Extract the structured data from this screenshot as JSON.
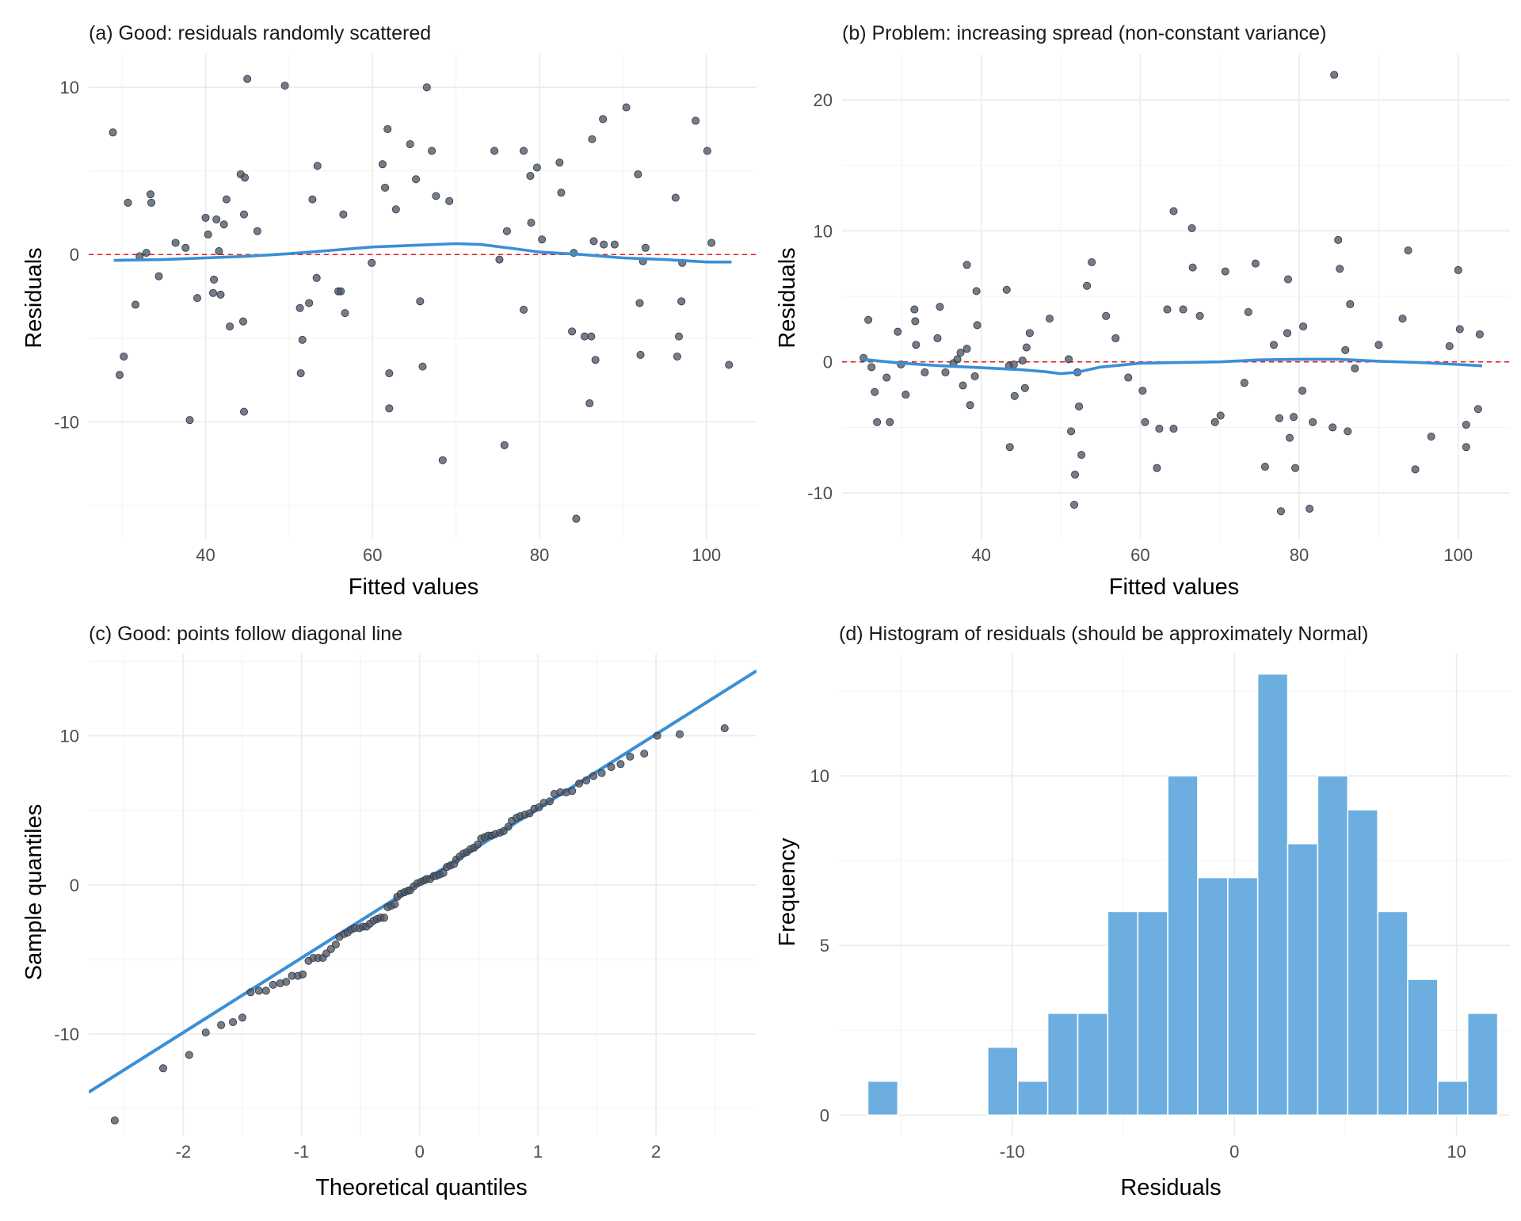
{
  "chart_data": [
    {
      "id": "a",
      "type": "scatter",
      "title": "(a) Good: residuals randomly scattered",
      "xlabel": "Fitted values",
      "ylabel": "Residuals",
      "xlim": [
        26,
        106
      ],
      "ylim": [
        -17,
        12
      ],
      "xticks": [
        40,
        60,
        80,
        100
      ],
      "yticks": [
        -10,
        0,
        10
      ],
      "reference_line_y": 0,
      "reference_color": "#e41a1c",
      "smooth_color": "#3a8fd6",
      "point_color": "#4d5766",
      "points": [
        [
          28.9,
          7.3
        ],
        [
          29.7,
          -7.2
        ],
        [
          30.2,
          -6.1
        ],
        [
          30.7,
          3.1
        ],
        [
          31.6,
          -3
        ],
        [
          32.1,
          -0.1
        ],
        [
          32.9,
          0.1
        ],
        [
          33.4,
          3.6
        ],
        [
          33.5,
          3.1
        ],
        [
          34.4,
          -1.3
        ],
        [
          36.4,
          0.7
        ],
        [
          37.6,
          0.4
        ],
        [
          38.1,
          -9.9
        ],
        [
          39,
          -2.6
        ],
        [
          40,
          2.2
        ],
        [
          40.3,
          1.2
        ],
        [
          40.9,
          -2.3
        ],
        [
          41,
          -1.5
        ],
        [
          41.3,
          2.1
        ],
        [
          41.6,
          0.2
        ],
        [
          41.8,
          -2.4
        ],
        [
          42.2,
          1.8
        ],
        [
          42.5,
          3.3
        ],
        [
          42.9,
          -4.3
        ],
        [
          44.2,
          4.8
        ],
        [
          44.5,
          -4
        ],
        [
          44.6,
          -9.4
        ],
        [
          44.6,
          2.4
        ],
        [
          44.7,
          4.6
        ],
        [
          45,
          10.5
        ],
        [
          46.2,
          1.4
        ],
        [
          49.5,
          10.1
        ],
        [
          51.3,
          -3.2
        ],
        [
          51.4,
          -7.1
        ],
        [
          51.6,
          -5.1
        ],
        [
          52.4,
          -2.9
        ],
        [
          52.8,
          3.3
        ],
        [
          53.3,
          -1.4
        ],
        [
          53.4,
          5.3
        ],
        [
          55.9,
          -2.2
        ],
        [
          56.2,
          -2.2
        ],
        [
          56.5,
          2.4
        ],
        [
          56.7,
          -3.5
        ],
        [
          59.9,
          -0.5
        ],
        [
          61.2,
          5.4
        ],
        [
          61.5,
          4.0
        ],
        [
          61.8,
          7.5
        ],
        [
          62,
          -9.2
        ],
        [
          62,
          -7.1
        ],
        [
          62.8,
          2.7
        ],
        [
          64.5,
          6.6
        ],
        [
          65.2,
          4.5
        ],
        [
          65.7,
          -2.8
        ],
        [
          66,
          -6.7
        ],
        [
          66.5,
          10.0
        ],
        [
          67.1,
          6.2
        ],
        [
          67.6,
          3.5
        ],
        [
          68.4,
          -12.3
        ],
        [
          69.2,
          3.2
        ],
        [
          74.6,
          6.2
        ],
        [
          75.2,
          -0.3
        ],
        [
          75.8,
          -11.4
        ],
        [
          76.1,
          1.4
        ],
        [
          78.1,
          -3.3
        ],
        [
          78.1,
          6.2
        ],
        [
          78.9,
          4.7
        ],
        [
          79,
          1.9
        ],
        [
          79.7,
          5.2
        ],
        [
          80.3,
          0.9
        ],
        [
          82.4,
          5.5
        ],
        [
          82.6,
          3.7
        ],
        [
          83.9,
          -4.6
        ],
        [
          84.1,
          0.1
        ],
        [
          84.4,
          -15.8
        ],
        [
          85.4,
          -4.9
        ],
        [
          86,
          -8.9
        ],
        [
          86.2,
          -4.9
        ],
        [
          86.3,
          6.9
        ],
        [
          86.5,
          0.8
        ],
        [
          86.7,
          -6.3
        ],
        [
          87.6,
          8.1
        ],
        [
          87.7,
          0.6
        ],
        [
          89,
          0.6
        ],
        [
          90.4,
          8.8
        ],
        [
          91.8,
          4.8
        ],
        [
          92,
          -2.9
        ],
        [
          92.1,
          -6.0
        ],
        [
          92.4,
          -0.4
        ],
        [
          92.7,
          0.4
        ],
        [
          96.3,
          3.4
        ],
        [
          96.5,
          -6.1
        ],
        [
          96.7,
          -4.9
        ],
        [
          97,
          -2.8
        ],
        [
          97.1,
          -0.5
        ],
        [
          98.7,
          8.0
        ],
        [
          100.1,
          6.2
        ],
        [
          100.6,
          0.7
        ],
        [
          102.7,
          -6.6
        ]
      ],
      "smooth": [
        [
          29,
          -0.35
        ],
        [
          35,
          -0.3
        ],
        [
          40,
          -0.2
        ],
        [
          45,
          -0.1
        ],
        [
          50,
          0.05
        ],
        [
          55,
          0.25
        ],
        [
          60,
          0.45
        ],
        [
          65,
          0.55
        ],
        [
          70,
          0.65
        ],
        [
          73,
          0.6
        ],
        [
          77,
          0.35
        ],
        [
          80,
          0.15
        ],
        [
          85,
          0
        ],
        [
          90,
          -0.2
        ],
        [
          95,
          -0.3
        ],
        [
          100,
          -0.45
        ],
        [
          103,
          -0.45
        ]
      ]
    },
    {
      "id": "b",
      "type": "scatter",
      "title": "(b) Problem: increasing spread (non-constant variance)",
      "xlabel": "Fitted values",
      "ylabel": "Residuals",
      "xlim": [
        22.5,
        106.5
      ],
      "ylim": [
        -13.5,
        23.5
      ],
      "xticks": [
        40,
        60,
        80,
        100
      ],
      "yticks": [
        -10,
        0,
        10,
        20
      ],
      "reference_line_y": 0,
      "reference_color": "#e41a1c",
      "smooth_color": "#3a8fd6",
      "point_color": "#4d5766",
      "points": [
        [
          25.2,
          0.3
        ],
        [
          25.8,
          3.2
        ],
        [
          26.2,
          -0.4
        ],
        [
          26.6,
          -2.3
        ],
        [
          26.9,
          -4.6
        ],
        [
          28.1,
          -1.2
        ],
        [
          28.5,
          -4.6
        ],
        [
          29.5,
          2.3
        ],
        [
          29.9,
          -0.2
        ],
        [
          30.5,
          -2.5
        ],
        [
          31.6,
          4.0
        ],
        [
          31.7,
          3.1
        ],
        [
          31.8,
          1.3
        ],
        [
          32.9,
          -0.8
        ],
        [
          34.5,
          1.8
        ],
        [
          34.8,
          4.2
        ],
        [
          35.5,
          -0.8
        ],
        [
          36.5,
          -0.1
        ],
        [
          37,
          0.2
        ],
        [
          37.4,
          0.7
        ],
        [
          37.7,
          -1.8
        ],
        [
          38.2,
          1.0
        ],
        [
          38.2,
          7.4
        ],
        [
          38.6,
          -3.3
        ],
        [
          39.2,
          -1.1
        ],
        [
          39.4,
          5.4
        ],
        [
          39.5,
          2.8
        ],
        [
          43.2,
          5.5
        ],
        [
          43.5,
          -0.3
        ],
        [
          43.6,
          -6.5
        ],
        [
          44.1,
          -0.2
        ],
        [
          44.2,
          -2.6
        ],
        [
          45.2,
          0.1
        ],
        [
          45.5,
          -2.0
        ],
        [
          45.7,
          1.1
        ],
        [
          46.1,
          2.2
        ],
        [
          48.6,
          3.3
        ],
        [
          51,
          0.2
        ],
        [
          51.3,
          -5.3
        ],
        [
          51.7,
          -10.9
        ],
        [
          51.8,
          -8.6
        ],
        [
          52.1,
          -0.8
        ],
        [
          52.3,
          -3.4
        ],
        [
          52.6,
          -7.1
        ],
        [
          53.3,
          5.8
        ],
        [
          53.9,
          7.6
        ],
        [
          55.7,
          3.5
        ],
        [
          56.9,
          1.8
        ],
        [
          58.5,
          -1.2
        ],
        [
          60.3,
          -2.2
        ],
        [
          60.6,
          -4.6
        ],
        [
          62.1,
          -8.1
        ],
        [
          62.4,
          -5.1
        ],
        [
          63.4,
          4.0
        ],
        [
          64.2,
          11.5
        ],
        [
          64.2,
          -5.1
        ],
        [
          65.4,
          4.0
        ],
        [
          66.5,
          10.2
        ],
        [
          66.6,
          7.2
        ],
        [
          67.5,
          3.5
        ],
        [
          69.4,
          -4.6
        ],
        [
          70.1,
          -4.1
        ],
        [
          70.7,
          6.9
        ],
        [
          73.1,
          -1.6
        ],
        [
          73.6,
          3.8
        ],
        [
          74.5,
          7.5
        ],
        [
          75.7,
          -8.0
        ],
        [
          76.8,
          1.3
        ],
        [
          77.5,
          -4.3
        ],
        [
          77.7,
          -11.4
        ],
        [
          78.5,
          2.2
        ],
        [
          78.6,
          6.3
        ],
        [
          78.8,
          -5.8
        ],
        [
          79.3,
          -4.2
        ],
        [
          79.5,
          -8.1
        ],
        [
          80.4,
          -2.2
        ],
        [
          80.5,
          2.7
        ],
        [
          81.3,
          -11.2
        ],
        [
          81.7,
          -4.6
        ],
        [
          84.2,
          -5.0
        ],
        [
          84.4,
          21.9
        ],
        [
          84.9,
          9.3
        ],
        [
          85.1,
          7.1
        ],
        [
          85.8,
          0.9
        ],
        [
          86.1,
          -5.3
        ],
        [
          86.4,
          4.4
        ],
        [
          87,
          -0.5
        ],
        [
          90,
          1.3
        ],
        [
          93,
          3.3
        ],
        [
          93.7,
          8.5
        ],
        [
          94.6,
          -8.2
        ],
        [
          96.6,
          -5.7
        ],
        [
          98.9,
          1.2
        ],
        [
          100,
          7.0
        ],
        [
          100.2,
          2.5
        ],
        [
          101,
          -4.8
        ],
        [
          101,
          -6.5
        ],
        [
          102.5,
          -3.6
        ],
        [
          102.7,
          2.1
        ]
      ],
      "smooth": [
        [
          25,
          0.2
        ],
        [
          30,
          -0.1
        ],
        [
          35,
          -0.3
        ],
        [
          40,
          -0.45
        ],
        [
          45,
          -0.6
        ],
        [
          48,
          -0.75
        ],
        [
          50,
          -0.9
        ],
        [
          52,
          -0.8
        ],
        [
          55,
          -0.4
        ],
        [
          60,
          -0.1
        ],
        [
          65,
          -0.05
        ],
        [
          70,
          0
        ],
        [
          75,
          0.15
        ],
        [
          80,
          0.2
        ],
        [
          85,
          0.2
        ],
        [
          90,
          0.05
        ],
        [
          95,
          -0.05
        ],
        [
          100,
          -0.2
        ],
        [
          103,
          -0.3
        ]
      ]
    },
    {
      "id": "c",
      "type": "scatter",
      "title": "(c) Good: points follow diagonal line",
      "xlabel": "Theoretical quantiles",
      "ylabel": "Sample quantiles",
      "xlim": [
        -2.8,
        2.85
      ],
      "ylim": [
        -16.8,
        15.5
      ],
      "xticks": [
        -2,
        -1,
        0,
        1,
        2
      ],
      "yticks": [
        -10,
        0,
        10
      ],
      "reference_line": {
        "intercept": 0.1,
        "slope": 5.0
      },
      "line_color": "#3a8fd6",
      "point_color": "#4d5766",
      "points": [
        [
          -2.58,
          -15.8
        ],
        [
          -2.17,
          -12.3
        ],
        [
          -1.95,
          -11.4
        ],
        [
          -1.81,
          -9.9
        ],
        [
          -1.68,
          -9.4
        ],
        [
          -1.58,
          -9.2
        ],
        [
          -1.5,
          -8.9
        ],
        [
          -1.43,
          -7.2
        ],
        [
          -1.36,
          -7.1
        ],
        [
          -1.3,
          -7.1
        ],
        [
          -1.24,
          -6.7
        ],
        [
          -1.18,
          -6.6
        ],
        [
          -1.13,
          -6.5
        ],
        [
          -1.08,
          -6.1
        ],
        [
          -1.03,
          -6.1
        ],
        [
          -0.99,
          -6.0
        ],
        [
          -0.94,
          -5.1
        ],
        [
          -0.9,
          -4.9
        ],
        [
          -0.86,
          -4.9
        ],
        [
          -0.82,
          -4.9
        ],
        [
          -0.79,
          -4.6
        ],
        [
          -0.75,
          -4.3
        ],
        [
          -0.71,
          -4.0
        ],
        [
          -0.68,
          -3.5
        ],
        [
          -0.64,
          -3.3
        ],
        [
          -0.61,
          -3.2
        ],
        [
          -0.58,
          -3.0
        ],
        [
          -0.55,
          -2.9
        ],
        [
          -0.51,
          -2.9
        ],
        [
          -0.48,
          -2.8
        ],
        [
          -0.45,
          -2.8
        ],
        [
          -0.42,
          -2.6
        ],
        [
          -0.39,
          -2.4
        ],
        [
          -0.36,
          -2.3
        ],
        [
          -0.33,
          -2.2
        ],
        [
          -0.3,
          -2.2
        ],
        [
          -0.27,
          -1.5
        ],
        [
          -0.24,
          -1.4
        ],
        [
          -0.21,
          -1.3
        ],
        [
          -0.19,
          -0.8
        ],
        [
          -0.16,
          -0.6
        ],
        [
          -0.13,
          -0.5
        ],
        [
          -0.1,
          -0.4
        ],
        [
          -0.08,
          -0.35
        ],
        [
          -0.05,
          -0.1
        ],
        [
          -0.02,
          0.1
        ],
        [
          0.01,
          0.2
        ],
        [
          0.04,
          0.3
        ],
        [
          0.06,
          0.4
        ],
        [
          0.09,
          0.4
        ],
        [
          0.12,
          0.6
        ],
        [
          0.14,
          0.6
        ],
        [
          0.17,
          0.7
        ],
        [
          0.2,
          0.8
        ],
        [
          0.23,
          1.2
        ],
        [
          0.26,
          1.3
        ],
        [
          0.29,
          1.4
        ],
        [
          0.31,
          1.7
        ],
        [
          0.34,
          1.9
        ],
        [
          0.37,
          2.1
        ],
        [
          0.4,
          2.2
        ],
        [
          0.43,
          2.4
        ],
        [
          0.46,
          2.5
        ],
        [
          0.49,
          2.7
        ],
        [
          0.52,
          3.1
        ],
        [
          0.55,
          3.2
        ],
        [
          0.58,
          3.3
        ],
        [
          0.61,
          3.3
        ],
        [
          0.64,
          3.4
        ],
        [
          0.68,
          3.5
        ],
        [
          0.71,
          3.6
        ],
        [
          0.75,
          3.9
        ],
        [
          0.78,
          4.3
        ],
        [
          0.82,
          4.5
        ],
        [
          0.85,
          4.6
        ],
        [
          0.89,
          4.7
        ],
        [
          0.93,
          4.8
        ],
        [
          0.97,
          5.1
        ],
        [
          1.01,
          5.2
        ],
        [
          1.05,
          5.5
        ],
        [
          1.1,
          5.6
        ],
        [
          1.14,
          6.1
        ],
        [
          1.19,
          6.2
        ],
        [
          1.24,
          6.2
        ],
        [
          1.29,
          6.3
        ],
        [
          1.35,
          6.8
        ],
        [
          1.41,
          7.0
        ],
        [
          1.47,
          7.3
        ],
        [
          1.54,
          7.5
        ],
        [
          1.62,
          7.9
        ],
        [
          1.7,
          8.1
        ],
        [
          1.78,
          8.6
        ],
        [
          1.9,
          8.8
        ],
        [
          2.01,
          10.0
        ],
        [
          2.2,
          10.1
        ],
        [
          2.58,
          10.5
        ]
      ]
    },
    {
      "id": "d",
      "type": "bar",
      "title": "(d) Histogram of residuals (should be approximately Normal)",
      "xlabel": "Residuals",
      "ylabel": "Frequency",
      "xlim": [
        -17.8,
        12.4
      ],
      "ylim": [
        -0.6,
        13.6
      ],
      "xticks": [
        -10,
        0,
        10
      ],
      "yticks": [
        0,
        5,
        10
      ],
      "bar_color": "#6caee0",
      "bin_width": 1.35,
      "bin_start": -16.5,
      "values": [
        1,
        0,
        0,
        0,
        2,
        1,
        3,
        3,
        6,
        6,
        10,
        7,
        7,
        13,
        8,
        10,
        9,
        6,
        4,
        1,
        3
      ]
    }
  ]
}
